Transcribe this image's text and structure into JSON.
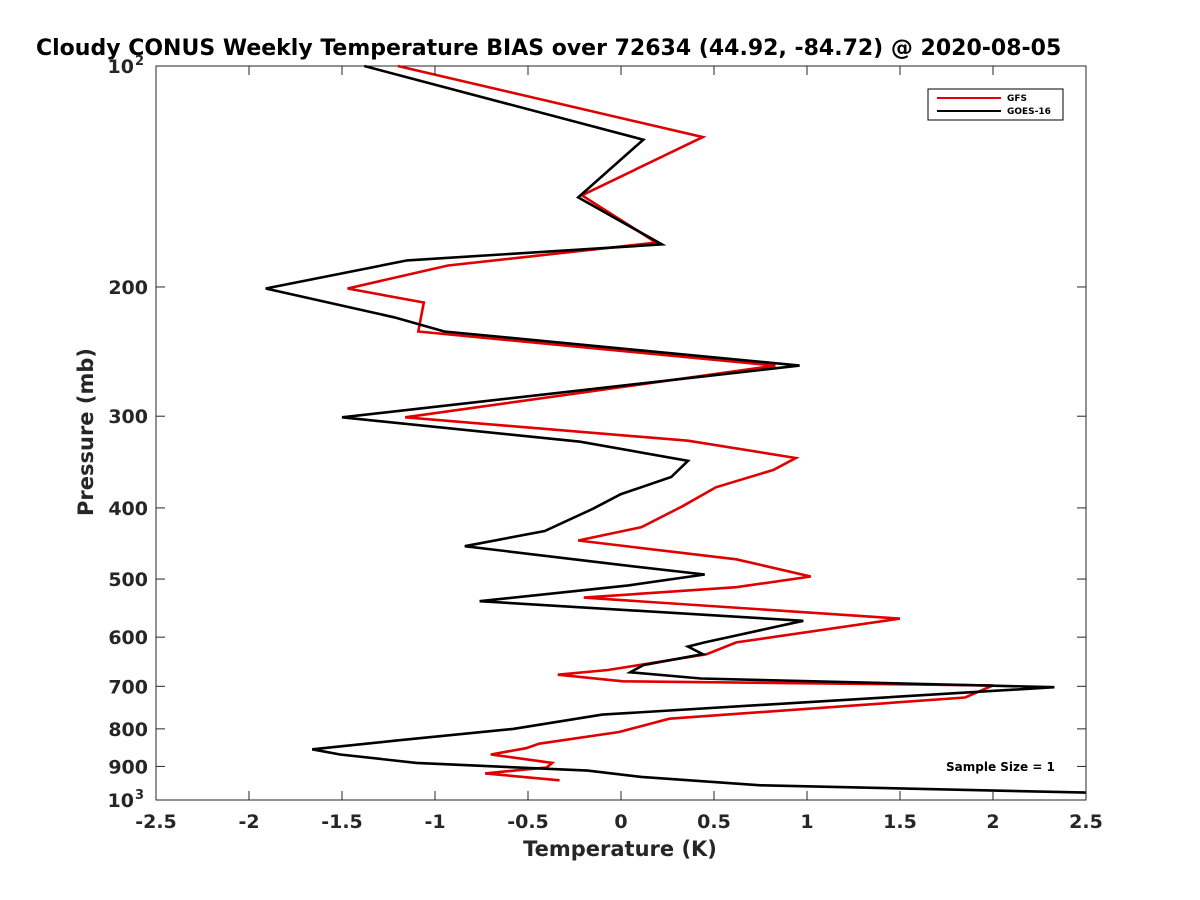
{
  "chart_data": {
    "type": "line",
    "title": "Cloudy CONUS Weekly Temperature BIAS over 72634 (44.92, -84.72) @ 2020-08-05",
    "xlabel": "Temperature (K)",
    "ylabel": "Pressure (mb)",
    "xlim": [
      -2.5,
      2.5
    ],
    "ylim": [
      100,
      1000
    ],
    "yscale": "log",
    "y_reversed": true,
    "xticks": [
      "-2.5",
      "-2",
      "-1.5",
      "-1",
      "-0.5",
      "0",
      "0.5",
      "1",
      "1.5",
      "2",
      "2.5"
    ],
    "yticks": [
      {
        "value": 100,
        "base": "10",
        "exp": "2"
      },
      {
        "value": 200,
        "label": "200"
      },
      {
        "value": 300,
        "label": "300"
      },
      {
        "value": 400,
        "label": "400"
      },
      {
        "value": 500,
        "label": "500"
      },
      {
        "value": 600,
        "label": "600"
      },
      {
        "value": 700,
        "label": "700"
      },
      {
        "value": 800,
        "label": "800"
      },
      {
        "value": 900,
        "label": "900"
      },
      {
        "value": 1000,
        "base": "10",
        "exp": "3"
      }
    ],
    "grid": false,
    "legend_position": "top-right",
    "annotation": "Sample Size = 1",
    "series": [
      {
        "name": "GFS",
        "color": "#e00000",
        "points": [
          [
            -1.2,
            100
          ],
          [
            0.44,
            125
          ],
          [
            -0.21,
            150
          ],
          [
            0.19,
            174
          ],
          [
            -0.93,
            187
          ],
          [
            -1.47,
            201
          ],
          [
            -1.06,
            210
          ],
          [
            -1.09,
            230
          ],
          [
            0.83,
            256
          ],
          [
            -1.16,
            301
          ],
          [
            0.36,
            324
          ],
          [
            0.94,
            342
          ],
          [
            0.82,
            355
          ],
          [
            0.51,
            375
          ],
          [
            0.33,
            398
          ],
          [
            0.11,
            425
          ],
          [
            -0.23,
            443
          ],
          [
            0.62,
            470
          ],
          [
            1.02,
            496
          ],
          [
            0.62,
            513
          ],
          [
            -0.2,
            530
          ],
          [
            1.5,
            566
          ],
          [
            0.62,
            610
          ],
          [
            0.46,
            633
          ],
          [
            -0.07,
            665
          ],
          [
            -0.34,
            675
          ],
          [
            0.01,
            689
          ],
          [
            2.0,
            698
          ],
          [
            1.85,
            725
          ],
          [
            0.26,
            775
          ],
          [
            -0.01,
            808
          ],
          [
            -0.44,
            838
          ],
          [
            -0.51,
            850
          ],
          [
            -0.7,
            867
          ],
          [
            -0.37,
            890
          ],
          [
            -0.4,
            903
          ],
          [
            -0.73,
            920
          ],
          [
            -0.33,
            940
          ]
        ]
      },
      {
        "name": "GOES-16",
        "color": "#000000",
        "points": [
          [
            -1.38,
            100
          ],
          [
            0.12,
            126
          ],
          [
            -0.23,
            151
          ],
          [
            0.22,
            175
          ],
          [
            -1.15,
            184
          ],
          [
            -1.91,
            201
          ],
          [
            -1.22,
            220
          ],
          [
            -0.95,
            230
          ],
          [
            0.96,
            256
          ],
          [
            -1.5,
            301
          ],
          [
            -0.22,
            325
          ],
          [
            0.36,
            345
          ],
          [
            0.27,
            363
          ],
          [
            0.0,
            383
          ],
          [
            -0.15,
            401
          ],
          [
            -0.41,
            430
          ],
          [
            -0.84,
            451
          ],
          [
            -0.01,
            478
          ],
          [
            0.45,
            493
          ],
          [
            0.04,
            510
          ],
          [
            -0.76,
            536
          ],
          [
            0.98,
            570
          ],
          [
            0.45,
            610
          ],
          [
            0.36,
            618
          ],
          [
            0.44,
            633
          ],
          [
            0.12,
            655
          ],
          [
            0.05,
            670
          ],
          [
            0.43,
            683
          ],
          [
            2.33,
            702
          ],
          [
            -0.1,
            765
          ],
          [
            -0.58,
            800
          ],
          [
            -1.21,
            830
          ],
          [
            -1.66,
            853
          ],
          [
            -1.51,
            867
          ],
          [
            -1.1,
            890
          ],
          [
            -0.18,
            912
          ],
          [
            0.11,
            930
          ],
          [
            0.75,
            955
          ],
          [
            2.5,
            977
          ]
        ]
      }
    ]
  }
}
